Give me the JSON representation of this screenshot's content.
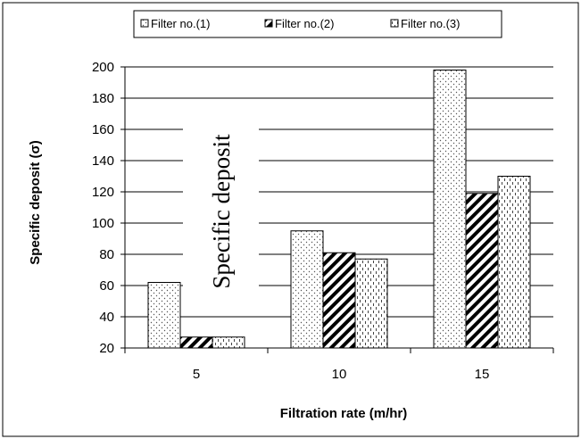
{
  "chart_data": {
    "type": "bar",
    "categories": [
      "5",
      "10",
      "15"
    ],
    "series": [
      {
        "name": "Filter no.(1)",
        "values": [
          62,
          95,
          198
        ],
        "pattern": "dots"
      },
      {
        "name": "Filter no.(2)",
        "values": [
          27,
          81,
          119
        ],
        "pattern": "hatch"
      },
      {
        "name": "Filter no.(3)",
        "values": [
          27,
          77,
          130
        ],
        "pattern": "dash"
      }
    ],
    "xlabel": "Filtration rate (m/hr)",
    "ylabel": "Specific deposit (σ)",
    "ylim": [
      20,
      200
    ],
    "yticks": [
      "20",
      "40",
      "60",
      "80",
      "100",
      "120",
      "140",
      "160",
      "180",
      "200"
    ],
    "grid": true,
    "legend_position": "top",
    "overlay_text": "Specific deposit"
  }
}
